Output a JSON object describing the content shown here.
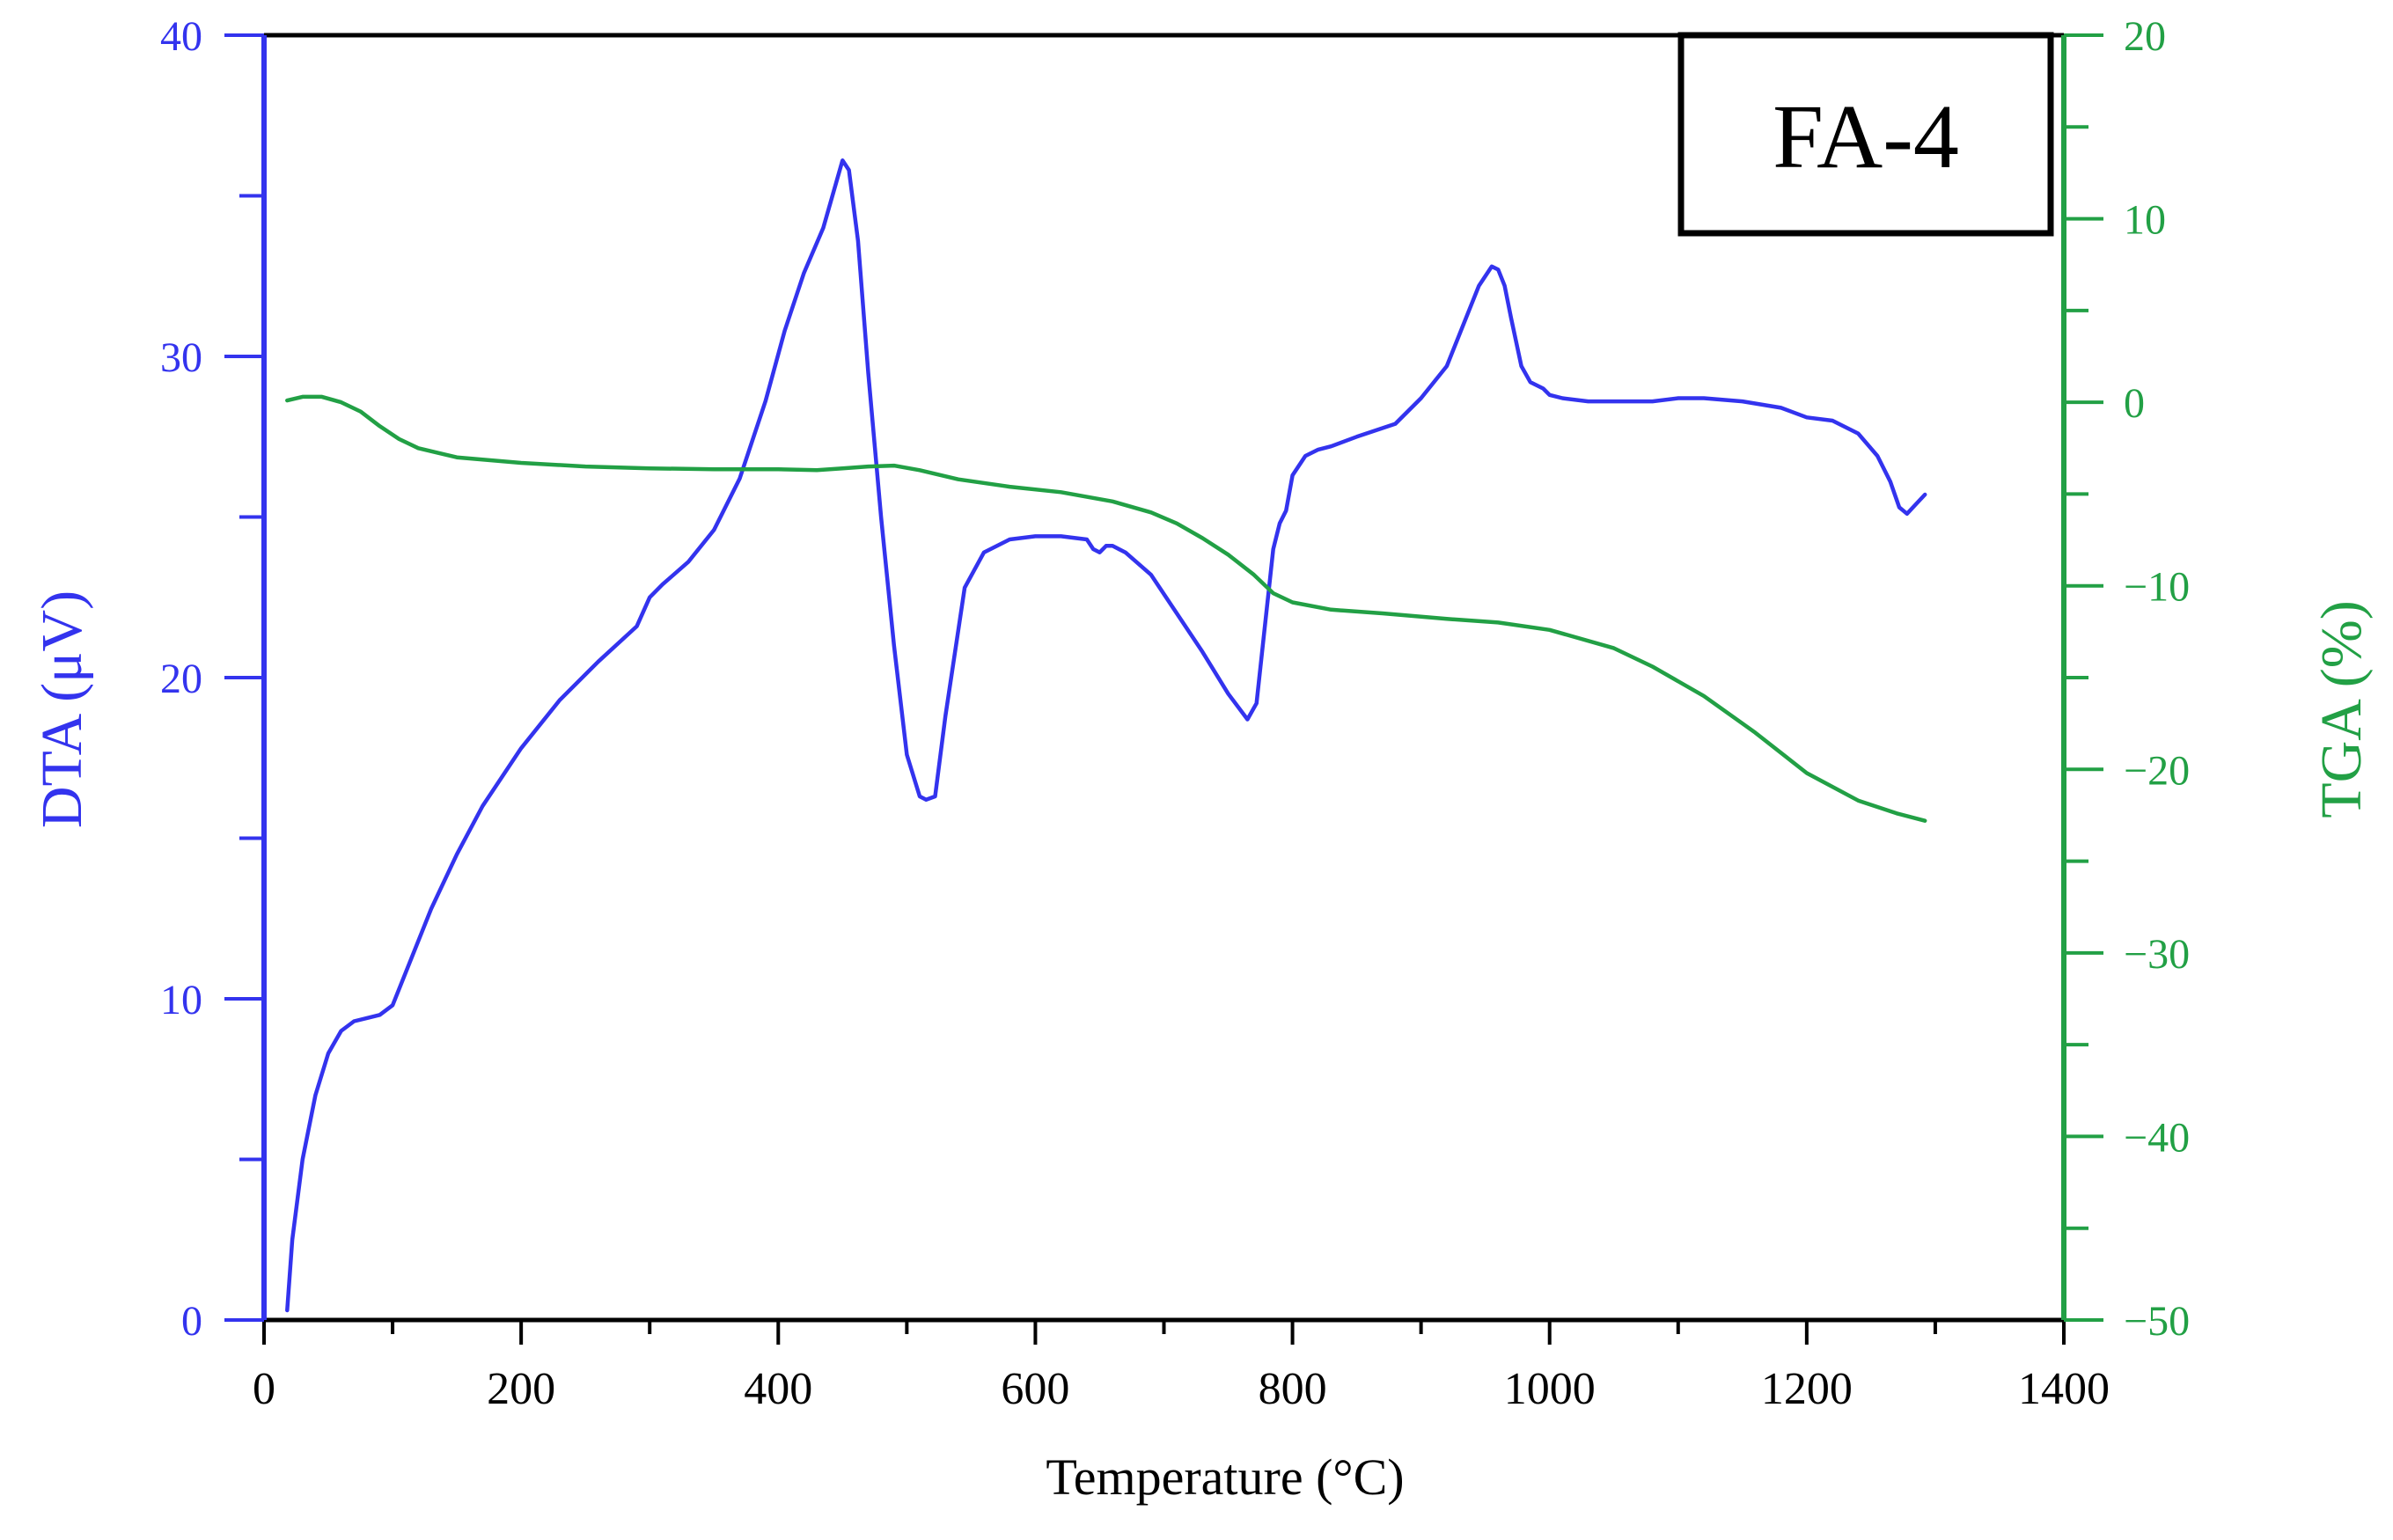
{
  "chart_data": {
    "type": "line",
    "title": "",
    "annotation": "FA-4",
    "xlabel": "Temperature (°C)",
    "ylabel_left": "DTA (μV)",
    "ylabel_right": "TGA (%)",
    "xlim": [
      0,
      1400
    ],
    "ylim_left": [
      0,
      40
    ],
    "ylim_right": [
      -50,
      20
    ],
    "xticks": [
      0,
      200,
      400,
      600,
      800,
      1000,
      1200,
      1400
    ],
    "xtick_labels": [
      "0",
      "200",
      "400",
      "600",
      "800",
      "1000",
      "1200",
      "1400"
    ],
    "yticks_left": [
      0,
      10,
      20,
      30,
      40
    ],
    "ytick_labels_left": [
      "0",
      "10",
      "20",
      "30",
      "40"
    ],
    "yticks_right": [
      -50,
      -40,
      -30,
      -20,
      -10,
      0,
      10,
      20
    ],
    "ytick_labels_right": [
      "−50",
      "−40",
      "−30",
      "−20",
      "−10",
      "0",
      "10",
      "20"
    ],
    "grid": false,
    "colors": {
      "dta": "#3333ee",
      "tga": "#22a045",
      "frame": "#000000"
    },
    "series": [
      {
        "name": "DTA",
        "axis": "left",
        "color": "#3333ee",
        "x": [
          18,
          22,
          30,
          40,
          50,
          60,
          70,
          80,
          90,
          100,
          110,
          130,
          150,
          170,
          200,
          230,
          260,
          290,
          300,
          310,
          330,
          350,
          370,
          390,
          405,
          420,
          435,
          445,
          450,
          455,
          462,
          470,
          480,
          490,
          500,
          510,
          515,
          522,
          530,
          545,
          560,
          580,
          600,
          620,
          640,
          645,
          650,
          655,
          660,
          670,
          690,
          710,
          730,
          750,
          765,
          772,
          778,
          785,
          790,
          795,
          800,
          810,
          820,
          830,
          850,
          880,
          900,
          920,
          935,
          945,
          955,
          960,
          965,
          970,
          978,
          985,
          995,
          1000,
          1010,
          1030,
          1060,
          1080,
          1100,
          1120,
          1150,
          1180,
          1200,
          1220,
          1240,
          1255,
          1265,
          1272,
          1278,
          1285,
          1292
        ],
        "values": [
          0.3,
          2.5,
          5.0,
          7.0,
          8.3,
          9.0,
          9.3,
          9.4,
          9.5,
          9.8,
          10.8,
          12.8,
          14.5,
          16.0,
          17.8,
          19.3,
          20.5,
          21.6,
          22.5,
          22.9,
          23.6,
          24.6,
          26.2,
          28.6,
          30.8,
          32.6,
          34.0,
          35.4,
          36.1,
          35.8,
          33.6,
          29.5,
          25.0,
          21.0,
          17.6,
          16.3,
          16.2,
          16.3,
          18.8,
          22.8,
          23.9,
          24.3,
          24.4,
          24.4,
          24.3,
          24.0,
          23.9,
          24.1,
          24.1,
          23.9,
          23.2,
          22.0,
          20.8,
          19.5,
          18.7,
          19.2,
          21.4,
          24.0,
          24.8,
          25.2,
          26.3,
          26.9,
          27.1,
          27.2,
          27.5,
          27.9,
          28.7,
          29.7,
          31.2,
          32.2,
          32.8,
          32.7,
          32.2,
          31.2,
          29.7,
          29.2,
          29.0,
          28.8,
          28.7,
          28.6,
          28.6,
          28.6,
          28.7,
          28.7,
          28.6,
          28.4,
          28.1,
          28.0,
          27.6,
          26.9,
          26.1,
          25.3,
          25.1,
          25.4,
          25.7
        ]
      },
      {
        "name": "TGA",
        "axis": "right",
        "color": "#22a045",
        "x": [
          18,
          30,
          45,
          60,
          75,
          90,
          105,
          120,
          150,
          200,
          250,
          300,
          350,
          400,
          430,
          450,
          470,
          490,
          510,
          540,
          580,
          620,
          660,
          690,
          710,
          730,
          750,
          770,
          785,
          800,
          830,
          870,
          920,
          960,
          1000,
          1050,
          1080,
          1120,
          1160,
          1200,
          1240,
          1270,
          1292
        ],
        "values": [
          0.1,
          0.3,
          0.3,
          0.0,
          -0.5,
          -1.3,
          -2.0,
          -2.5,
          -3.0,
          -3.3,
          -3.5,
          -3.6,
          -3.65,
          -3.65,
          -3.7,
          -3.6,
          -3.5,
          -3.45,
          -3.7,
          -4.2,
          -4.6,
          -4.9,
          -5.4,
          -6.0,
          -6.6,
          -7.4,
          -8.3,
          -9.4,
          -10.4,
          -10.9,
          -11.3,
          -11.5,
          -11.8,
          -12.0,
          -12.4,
          -13.4,
          -14.4,
          -16.0,
          -18.0,
          -20.2,
          -21.7,
          -22.4,
          -22.8
        ]
      }
    ]
  }
}
